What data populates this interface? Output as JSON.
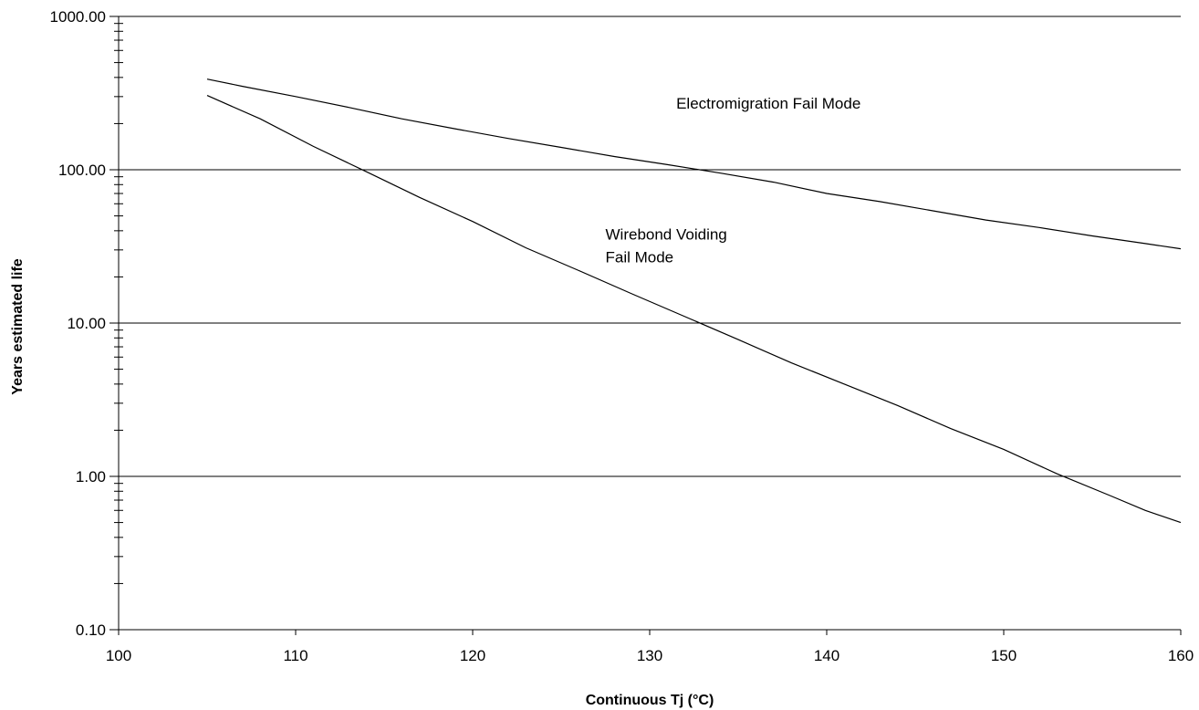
{
  "chart_data": {
    "type": "line",
    "title": "",
    "xlabel": "Continuous Tj (°C)",
    "ylabel": "Years estimated life",
    "xlim": [
      100,
      160
    ],
    "ylim": [
      0.1,
      1000
    ],
    "yscale": "log",
    "grid": "horizontal major gridlines",
    "legend": "none",
    "x_ticks": [
      100,
      110,
      120,
      130,
      140,
      150,
      160
    ],
    "x_tick_labels": [
      "100",
      "110",
      "120",
      "130",
      "140",
      "150",
      "160"
    ],
    "y_ticks": [
      0.1,
      1,
      10,
      100,
      1000
    ],
    "y_tick_labels": [
      "0.10",
      "1.00",
      "10.00",
      "100.00",
      "1000.00"
    ],
    "series": [
      {
        "label_text": "Electromigration Fail Mode",
        "color": "#000000",
        "x": [
          105,
          107,
          110,
          113,
          116,
          119,
          122,
          125,
          128,
          131,
          134,
          137,
          140,
          143,
          146,
          149,
          152,
          155,
          158,
          160
        ],
        "y": [
          390,
          350,
          300,
          255,
          215,
          185,
          160,
          140,
          122,
          108,
          95,
          83,
          70,
          62,
          54,
          47,
          42,
          37,
          33,
          30.5
        ]
      },
      {
        "label_lines": [
          "Wirebond Voiding",
          "Fail Mode"
        ],
        "color": "#000000",
        "x": [
          105,
          108,
          111,
          114,
          117,
          120,
          123,
          126,
          129,
          132,
          135,
          138,
          141,
          144,
          147,
          150,
          153,
          156,
          158,
          160
        ],
        "y": [
          305,
          215,
          142,
          97,
          66,
          46,
          31,
          22,
          15.5,
          11,
          7.8,
          5.5,
          4.0,
          2.9,
          2.05,
          1.5,
          1.04,
          0.75,
          0.6,
          0.5
        ]
      }
    ],
    "annotations": [
      {
        "text_lines": [
          "Electromigration Fail Mode"
        ],
        "x": 131.5,
        "y": 250
      },
      {
        "text_lines": [
          "Wirebond Voiding",
          "Fail Mode"
        ],
        "x": 127.5,
        "y": 35
      }
    ]
  }
}
